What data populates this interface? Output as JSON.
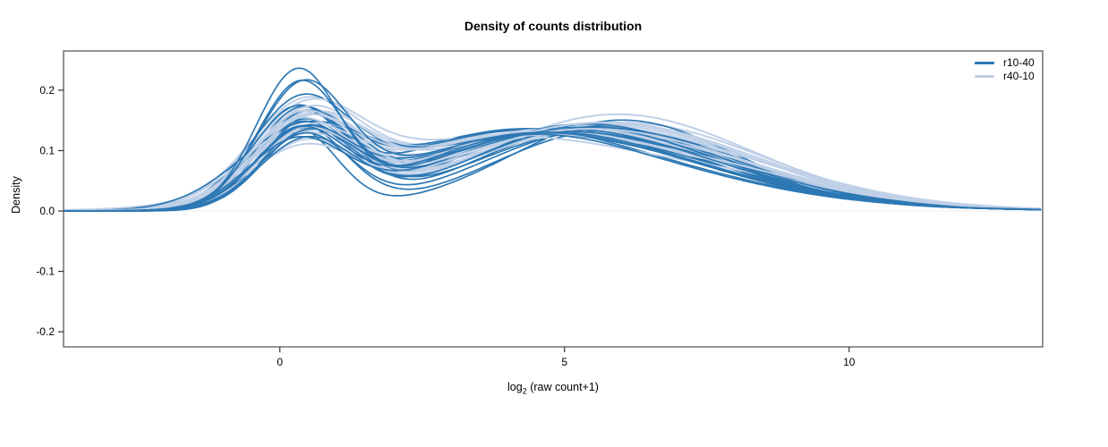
{
  "chart_data": {
    "type": "line",
    "title": "Density of counts distribution",
    "xlabel": "log2 (raw count+1)",
    "xlabel_parts": {
      "prefix": "log",
      "sub": "2",
      "suffix": " (raw count+1)"
    },
    "ylabel": "Density",
    "xlim": [
      -3.8,
      13.4
    ],
    "ylim": [
      -0.225,
      0.265
    ],
    "xticks": {
      "values": [
        0,
        5,
        10
      ],
      "labels": [
        "0",
        "5",
        "10"
      ]
    },
    "yticks": {
      "values": [
        0.2,
        0.1,
        0,
        -0.1,
        -0.2
      ],
      "labels": [
        "0.2",
        "0.1",
        "0.0",
        "-0.1",
        "-0.2"
      ]
    },
    "grid": false,
    "zero_line": {
      "y": 0,
      "color": "#f0f0f0"
    },
    "frame_color": "#666666",
    "legend": {
      "position": "top-right",
      "entries": [
        {
          "label": "r10-40",
          "color": "#2d78b4"
        },
        {
          "label": "r40-10",
          "color": "#bfd0e7"
        }
      ]
    },
    "curve_model": "each curve y(x) = sum of Gaussian components [amplitude, mean, sd], evaluated over xlim; group indexes legend.entries",
    "curves": [
      {
        "group": 1,
        "components": [
          [
            0.15,
            0.4,
            0.95
          ],
          [
            0.115,
            4.0,
            2.4
          ],
          [
            0.045,
            7.5,
            2.0
          ],
          [
            0.006,
            10.8,
            2.0
          ]
        ]
      },
      {
        "group": 0,
        "components": [
          [
            0.165,
            0.3,
            0.8
          ],
          [
            0.13,
            4.8,
            2.0
          ],
          [
            0.03,
            7.6,
            1.8
          ],
          [
            0.005,
            10.6,
            2.0
          ]
        ]
      },
      {
        "group": 1,
        "components": [
          [
            0.145,
            0.35,
            0.9
          ],
          [
            0.12,
            4.4,
            2.3
          ],
          [
            0.04,
            7.8,
            1.9
          ],
          [
            0.005,
            11.0,
            2.0
          ]
        ]
      },
      {
        "group": 0,
        "components": [
          [
            0.16,
            0.45,
            0.82
          ],
          [
            0.128,
            5.2,
            1.9
          ],
          [
            0.026,
            8.0,
            1.6
          ],
          [
            0.006,
            10.4,
            2.1
          ]
        ]
      },
      {
        "group": 1,
        "components": [
          [
            0.14,
            0.5,
            0.92
          ],
          [
            0.112,
            4.8,
            2.5
          ],
          [
            0.048,
            7.2,
            2.1
          ],
          [
            0.007,
            10.5,
            2.1
          ]
        ]
      },
      {
        "group": 0,
        "components": [
          [
            0.155,
            0.35,
            0.85
          ],
          [
            0.122,
            3.9,
            2.3
          ],
          [
            0.04,
            7.0,
            2.0
          ],
          [
            0.004,
            10.9,
            1.9
          ]
        ]
      },
      {
        "group": 1,
        "components": [
          [
            0.135,
            0.3,
            0.88
          ],
          [
            0.125,
            5.0,
            2.2
          ],
          [
            0.038,
            8.0,
            1.8
          ],
          [
            0.005,
            11.2,
            1.9
          ]
        ]
      },
      {
        "group": 0,
        "components": [
          [
            0.15,
            0.5,
            0.8
          ],
          [
            0.135,
            5.0,
            2.0
          ],
          [
            0.022,
            8.3,
            1.5
          ],
          [
            0.005,
            10.7,
            2.0
          ]
        ]
      },
      {
        "group": 1,
        "components": [
          [
            0.132,
            0.45,
            0.95
          ],
          [
            0.118,
            3.8,
            2.6
          ],
          [
            0.05,
            7.6,
            2.0
          ],
          [
            0.006,
            10.6,
            2.0
          ]
        ]
      },
      {
        "group": 0,
        "components": [
          [
            0.148,
            0.28,
            0.78
          ],
          [
            0.115,
            4.4,
            2.4
          ],
          [
            0.038,
            7.4,
            1.9
          ],
          [
            0.006,
            10.5,
            2.0
          ]
        ]
      },
      {
        "group": 1,
        "components": [
          [
            0.128,
            0.38,
            0.9
          ],
          [
            0.122,
            5.2,
            2.3
          ],
          [
            0.036,
            8.3,
            1.8
          ],
          [
            0.005,
            11.4,
            1.8
          ]
        ]
      },
      {
        "group": 0,
        "components": [
          [
            0.145,
            0.42,
            0.88
          ],
          [
            0.126,
            5.4,
            2.1
          ],
          [
            0.03,
            8.1,
            1.7
          ],
          [
            0.004,
            11.0,
            1.9
          ]
        ]
      },
      {
        "group": 1,
        "components": [
          [
            0.125,
            0.55,
            0.93
          ],
          [
            0.11,
            4.2,
            2.5
          ],
          [
            0.046,
            7.0,
            2.2
          ],
          [
            0.007,
            10.4,
            2.1
          ]
        ]
      },
      {
        "group": 0,
        "components": [
          [
            0.142,
            0.33,
            0.75
          ],
          [
            0.132,
            4.1,
            2.2
          ],
          [
            0.027,
            7.7,
            1.8
          ],
          [
            0.005,
            10.8,
            2.0
          ]
        ]
      },
      {
        "group": 1,
        "components": [
          [
            0.122,
            0.33,
            0.87
          ],
          [
            0.126,
            4.6,
            2.2
          ],
          [
            0.04,
            7.9,
            1.9
          ],
          [
            0.005,
            11.0,
            2.0
          ]
        ]
      },
      {
        "group": 0,
        "components": [
          [
            0.14,
            0.55,
            0.85
          ],
          [
            0.12,
            4.9,
            2.3
          ],
          [
            0.034,
            7.1,
            2.0
          ],
          [
            0.006,
            10.3,
            2.1
          ]
        ]
      },
      {
        "group": 1,
        "components": [
          [
            0.12,
            0.48,
            0.96
          ],
          [
            0.114,
            5.4,
            2.4
          ],
          [
            0.044,
            7.3,
            2.0
          ],
          [
            0.006,
            10.7,
            2.0
          ]
        ]
      },
      {
        "group": 0,
        "components": [
          [
            0.138,
            0.38,
            0.8
          ],
          [
            0.128,
            5.6,
            1.9
          ],
          [
            0.024,
            8.5,
            1.6
          ],
          [
            0.004,
            11.2,
            1.8
          ]
        ]
      },
      {
        "group": 1,
        "components": [
          [
            0.118,
            0.36,
            0.89
          ],
          [
            0.124,
            4.1,
            2.5
          ],
          [
            0.038,
            8.1,
            1.9
          ],
          [
            0.005,
            11.3,
            1.9
          ]
        ]
      },
      {
        "group": 0,
        "components": [
          [
            0.135,
            0.3,
            0.7
          ],
          [
            0.118,
            5.8,
            1.9
          ],
          [
            0.036,
            6.9,
            2.1
          ],
          [
            0.005,
            10.6,
            2.0
          ]
        ]
      },
      {
        "group": 1,
        "components": [
          [
            0.115,
            0.52,
            0.94
          ],
          [
            0.112,
            4.9,
            2.3
          ],
          [
            0.048,
            7.5,
            2.1
          ],
          [
            0.007,
            10.5,
            2.0
          ]
        ]
      },
      {
        "group": 0,
        "components": [
          [
            0.133,
            0.47,
            0.78
          ],
          [
            0.13,
            5.1,
            2.0
          ],
          [
            0.029,
            7.9,
            1.7
          ],
          [
            0.005,
            10.9,
            1.9
          ]
        ]
      },
      {
        "group": 1,
        "components": [
          [
            0.112,
            0.4,
            0.91
          ],
          [
            0.12,
            5.1,
            2.4
          ],
          [
            0.036,
            8.4,
            1.8
          ],
          [
            0.005,
            11.5,
            1.8
          ]
        ]
      },
      {
        "group": 0,
        "components": [
          [
            0.13,
            0.36,
            0.86
          ],
          [
            0.124,
            4.0,
            2.3
          ],
          [
            0.04,
            7.3,
            1.9
          ],
          [
            0.006,
            10.4,
            2.0
          ]
        ]
      },
      {
        "group": 1,
        "components": [
          [
            0.11,
            0.3,
            0.95
          ],
          [
            0.116,
            4.3,
            2.6
          ],
          [
            0.042,
            7.1,
            2.1
          ],
          [
            0.006,
            10.6,
            2.0
          ]
        ]
      },
      {
        "group": 0,
        "components": [
          [
            0.128,
            0.52,
            0.8
          ],
          [
            0.134,
            5.3,
            2.1
          ],
          [
            0.025,
            8.2,
            1.6
          ],
          [
            0.004,
            11.1,
            1.9
          ]
        ]
      },
      {
        "group": 1,
        "components": [
          [
            0.108,
            0.46,
            0.88
          ],
          [
            0.122,
            5.3,
            2.2
          ],
          [
            0.04,
            7.7,
            2.0
          ],
          [
            0.005,
            11.1,
            1.9
          ]
        ]
      },
      {
        "group": 0,
        "components": [
          [
            0.126,
            0.32,
            0.84
          ],
          [
            0.116,
            4.7,
            2.4
          ],
          [
            0.037,
            7.0,
            2.0
          ],
          [
            0.006,
            10.5,
            2.0
          ]
        ]
      },
      {
        "group": 1,
        "components": [
          [
            0.105,
            0.35,
            0.93
          ],
          [
            0.113,
            4.5,
            2.5
          ],
          [
            0.046,
            7.4,
            2.0
          ],
          [
            0.006,
            10.8,
            2.0
          ]
        ]
      },
      {
        "group": 0,
        "components": [
          [
            0.124,
            0.44,
            0.79
          ],
          [
            0.129,
            5.5,
            2.0
          ],
          [
            0.028,
            8.4,
            1.7
          ],
          [
            0.005,
            11.0,
            1.9
          ]
        ]
      },
      {
        "group": 1,
        "components": [
          [
            0.102,
            0.5,
            0.9
          ],
          [
            0.119,
            4.0,
            2.4
          ],
          [
            0.038,
            8.2,
            1.9
          ],
          [
            0.005,
            11.2,
            1.9
          ]
        ]
      },
      {
        "group": 0,
        "components": [
          [
            0.122,
            0.37,
            1.1
          ],
          [
            0.121,
            4.3,
            2.2
          ],
          [
            0.033,
            7.6,
            1.8
          ],
          [
            0.005,
            10.7,
            2.0
          ]
        ]
      },
      {
        "group": 1,
        "components": [
          [
            0.1,
            0.42,
            0.96
          ],
          [
            0.123,
            5.5,
            2.3
          ],
          [
            0.044,
            7.0,
            2.1
          ],
          [
            0.007,
            10.4,
            2.0
          ]
        ]
      },
      {
        "group": 0,
        "components": [
          [
            0.12,
            0.5,
            0.83
          ],
          [
            0.127,
            5.0,
            2.2
          ],
          [
            0.03,
            7.2,
            1.9
          ],
          [
            0.005,
            10.8,
            2.0
          ]
        ]
      },
      {
        "group": 1,
        "components": [
          [
            0.115,
            0.37,
            0.9
          ],
          [
            0.117,
            4.7,
            2.4
          ],
          [
            0.04,
            7.8,
            1.9
          ],
          [
            0.005,
            11.0,
            1.9
          ]
        ]
      },
      {
        "group": 0,
        "components": [
          [
            0.118,
            0.34,
            0.77
          ],
          [
            0.119,
            4.6,
            2.3
          ],
          [
            0.035,
            7.8,
            1.8
          ],
          [
            0.006,
            10.6,
            2.0
          ]
        ]
      },
      {
        "group": 1,
        "components": [
          [
            0.126,
            0.44,
            0.92
          ],
          [
            0.121,
            4.2,
            2.3
          ],
          [
            0.042,
            7.6,
            2.0
          ],
          [
            0.006,
            10.9,
            2.0
          ]
        ]
      },
      {
        "group": 0,
        "components": [
          [
            0.115,
            0.48,
            0.85
          ],
          [
            0.131,
            5.2,
            2.0
          ],
          [
            0.026,
            8.0,
            1.6
          ],
          [
            0.004,
            11.3,
            1.8
          ]
        ]
      },
      {
        "group": 1,
        "components": [
          [
            0.134,
            0.32,
            0.89
          ],
          [
            0.115,
            5.0,
            2.5
          ],
          [
            0.046,
            7.2,
            2.1
          ],
          [
            0.006,
            10.5,
            2.0
          ]
        ]
      },
      {
        "group": 0,
        "components": [
          [
            0.112,
            0.4,
            0.81
          ],
          [
            0.117,
            4.4,
            2.4
          ],
          [
            0.038,
            7.4,
            2.0
          ],
          [
            0.005,
            10.7,
            2.0
          ]
        ]
      },
      {
        "group": 1,
        "components": [
          [
            0.142,
            0.47,
            0.94
          ],
          [
            0.119,
            4.4,
            2.4
          ],
          [
            0.038,
            8.0,
            1.9
          ],
          [
            0.005,
            11.2,
            1.9
          ]
        ]
      },
      {
        "group": 0,
        "components": [
          [
            0.11,
            0.3,
            0.86
          ],
          [
            0.125,
            4.8,
            2.1
          ],
          [
            0.031,
            7.7,
            1.8
          ],
          [
            0.006,
            10.5,
            2.0
          ]
        ]
      },
      {
        "group": 1,
        "components": [
          [
            0.148,
            0.39,
            0.91
          ],
          [
            0.113,
            4.8,
            2.3
          ],
          [
            0.044,
            7.4,
            2.0
          ],
          [
            0.006,
            10.7,
            2.0
          ]
        ]
      },
      {
        "group": 0,
        "components": [
          [
            0.19,
            0.4,
            0.78
          ],
          [
            0.118,
            4.2,
            2.2
          ],
          [
            0.035,
            7.2,
            1.9
          ],
          [
            0.005,
            10.6,
            2.0
          ]
        ]
      },
      {
        "group": 0,
        "components": [
          [
            0.2,
            0.35,
            0.75
          ],
          [
            0.125,
            4.6,
            2.1
          ],
          [
            0.028,
            7.8,
            1.7
          ],
          [
            0.005,
            10.8,
            1.9
          ]
        ]
      },
      {
        "group": 0,
        "components": [
          [
            0.22,
            0.3,
            0.72
          ],
          [
            0.12,
            4.3,
            2.0
          ],
          [
            0.03,
            7.5,
            1.8
          ],
          [
            0.006,
            10.5,
            2.1
          ]
        ]
      }
    ]
  }
}
